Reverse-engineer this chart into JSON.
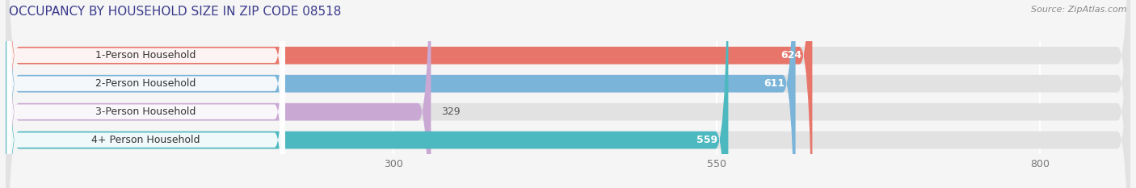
{
  "title": "OCCUPANCY BY HOUSEHOLD SIZE IN ZIP CODE 08518",
  "source_text": "Source: ZipAtlas.com",
  "categories": [
    "1-Person Household",
    "2-Person Household",
    "3-Person Household",
    "4+ Person Household"
  ],
  "values": [
    624,
    611,
    329,
    559
  ],
  "bar_colors": [
    "#e8756a",
    "#7ab4d8",
    "#c9a8d4",
    "#4cb8c0"
  ],
  "xlim": [
    0,
    870
  ],
  "xticks": [
    300,
    550,
    800
  ],
  "background_color": "#f5f5f5",
  "bar_bg_color": "#e2e2e2",
  "title_fontsize": 11,
  "source_fontsize": 8,
  "label_fontsize": 9,
  "value_fontsize": 9,
  "bar_height": 0.62,
  "figsize": [
    14.06,
    2.33
  ],
  "dpi": 100
}
